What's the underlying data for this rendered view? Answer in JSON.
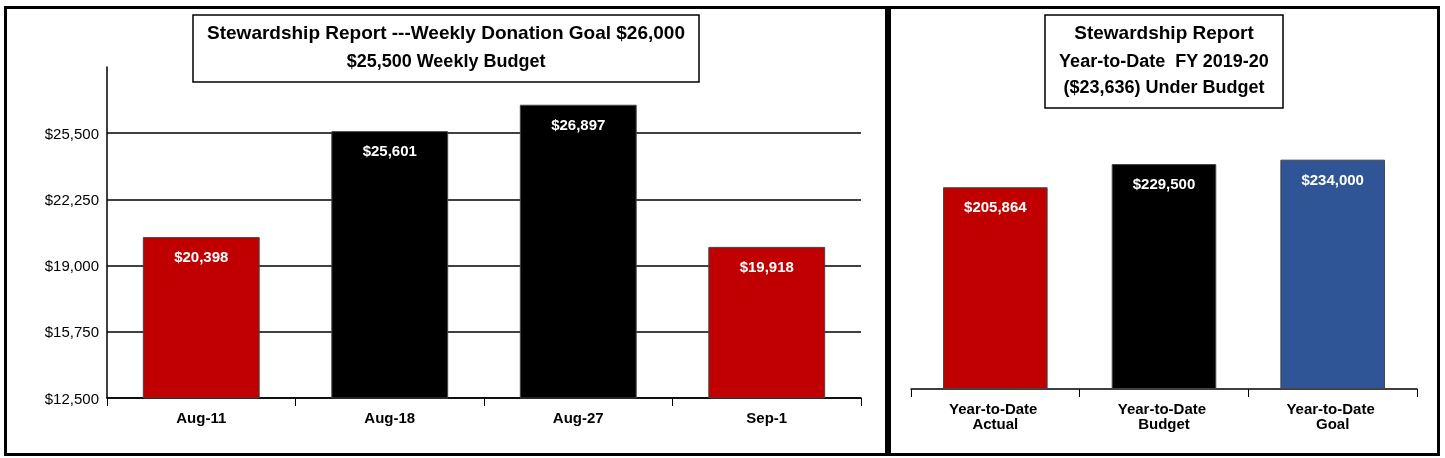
{
  "chart_data": [
    {
      "type": "bar",
      "title": "Stewardship Report ---Weekly Donation Goal $26,000",
      "subtitle": "$25,500 Weekly Budget",
      "categories": [
        "Aug-11",
        "Aug-18",
        "Aug-27",
        "Sep-1"
      ],
      "values": [
        20398,
        25601,
        26897,
        19918
      ],
      "colors": [
        "#c00000",
        "#000000",
        "#000000",
        "#c00000"
      ],
      "value_labels": [
        "$20,398",
        "$25,601",
        "$26,897",
        "$19,918"
      ],
      "ylim": [
        12500,
        28750
      ],
      "yticks": [
        {
          "value": 12500,
          "label": "$12,500"
        },
        {
          "value": 15750,
          "label": "$15,750"
        },
        {
          "value": 19000,
          "label": "$19,000"
        },
        {
          "value": 22250,
          "label": "$22,250"
        },
        {
          "value": 25500,
          "label": "$25,500"
        }
      ],
      "grid": "y"
    },
    {
      "type": "bar",
      "title": "Stewardship Report",
      "subtitle": "Year-to-Date  FY 2019-20",
      "annotations": [
        "($23,636) Under Budget"
      ],
      "categories": [
        "Year-to-Date Actual",
        "Year-to-Date Budget",
        "Year-to-Date Goal"
      ],
      "values": [
        205864,
        229500,
        234000
      ],
      "colors": [
        "#c00000",
        "#000000",
        "#2f5597"
      ],
      "value_labels": [
        "$205,864",
        "$229,500",
        "$234,000"
      ],
      "tick_labels": "x",
      "grid": false
    }
  ]
}
